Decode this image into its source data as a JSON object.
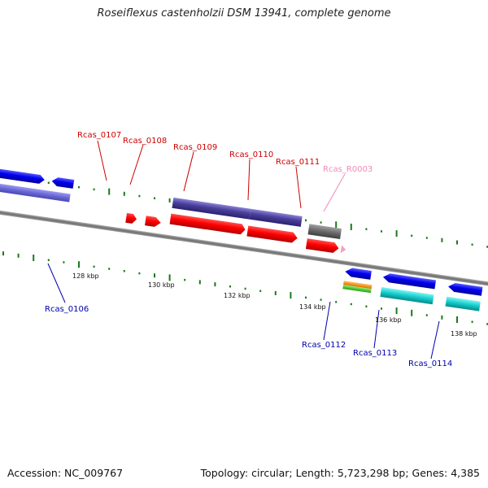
{
  "title": "Roseiflexus castenholzii DSM 13941, complete genome",
  "footer": {
    "accession": "Accession: NC_009767",
    "summary": "Topology: circular; Length: 5,723,298 bp; Genes: 4,385"
  },
  "colors": {
    "top_label": "#cc0000",
    "rna_label": "#f08ab8",
    "bottom_label": "#0000aa",
    "backbone": "#888888",
    "gc_tick": "#1a7a1a"
  },
  "scale_labels": [
    "128 kbp",
    "130 kbp",
    "132 kbp",
    "134 kbp",
    "136 kbp",
    "138 kbp"
  ],
  "top_genes": [
    {
      "label": "Rcas_0107",
      "color": "red"
    },
    {
      "label": "Rcas_0108",
      "color": "red"
    },
    {
      "label": "Rcas_0109",
      "color": "red"
    },
    {
      "label": "Rcas_0110",
      "color": "red"
    },
    {
      "label": "Rcas_0111",
      "color": "red"
    },
    {
      "label": "Rcas_R0003",
      "color": "pink"
    }
  ],
  "bottom_genes": [
    {
      "label": "Rcas_0106"
    },
    {
      "label": "Rcas_0112"
    },
    {
      "label": "Rcas_0113"
    },
    {
      "label": "Rcas_0114"
    }
  ]
}
